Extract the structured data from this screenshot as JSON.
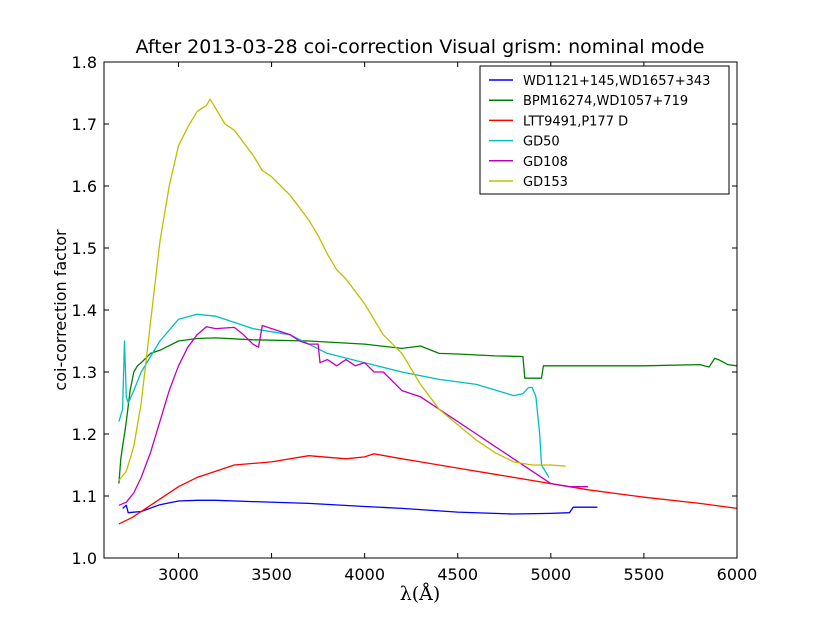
{
  "chart_data": {
    "type": "line",
    "title": "After 2013-03-28 coi-correction Visual grism: nominal mode",
    "xlabel": "λ(Å)",
    "ylabel": "coi-correction factor",
    "xlim": [
      2600,
      6000
    ],
    "ylim": [
      1.0,
      1.8
    ],
    "xticks": [
      "3000",
      "3500",
      "4000",
      "4500",
      "5000",
      "5500",
      "6000"
    ],
    "yticks": [
      "1.0",
      "1.1",
      "1.2",
      "1.3",
      "1.4",
      "1.5",
      "1.6",
      "1.7",
      "1.8"
    ],
    "grid": false,
    "legend_position": "top-right",
    "series": [
      {
        "name": "WD1121+145,WD1657+343",
        "color": "#0000ff",
        "x": [
          2700,
          2720,
          2730,
          2800,
          2900,
          3000,
          3100,
          3200,
          3400,
          3700,
          4000,
          4200,
          4500,
          4800,
          5000,
          5100,
          5120,
          5250
        ],
        "y": [
          1.08,
          1.085,
          1.073,
          1.075,
          1.086,
          1.092,
          1.093,
          1.093,
          1.091,
          1.088,
          1.083,
          1.08,
          1.074,
          1.071,
          1.072,
          1.073,
          1.082,
          1.082
        ]
      },
      {
        "name": "BPM16274,WD1057+719",
        "color": "#008000",
        "x": [
          2680,
          2690,
          2700,
          2710,
          2720,
          2740,
          2760,
          2780,
          2800,
          2850,
          2900,
          3000,
          3100,
          3200,
          3400,
          3700,
          4000,
          4200,
          4300,
          4400,
          4500,
          4700,
          4850,
          4860,
          4950,
          4960,
          5000,
          5500,
          5800,
          5850,
          5880,
          5900,
          5950,
          6000
        ],
        "y": [
          1.12,
          1.16,
          1.18,
          1.2,
          1.22,
          1.27,
          1.3,
          1.31,
          1.315,
          1.33,
          1.335,
          1.35,
          1.354,
          1.355,
          1.352,
          1.35,
          1.345,
          1.338,
          1.342,
          1.33,
          1.329,
          1.326,
          1.325,
          1.29,
          1.29,
          1.31,
          1.31,
          1.31,
          1.312,
          1.308,
          1.322,
          1.32,
          1.312,
          1.31
        ]
      },
      {
        "name": "LTT9491,P177 D",
        "color": "#ff0000",
        "x": [
          2680,
          2750,
          2800,
          2900,
          3000,
          3100,
          3200,
          3300,
          3500,
          3700,
          3900,
          4000,
          4050,
          4200,
          4300,
          4500,
          4700,
          4900,
          5200,
          5500,
          5800,
          6000
        ],
        "y": [
          1.055,
          1.065,
          1.075,
          1.095,
          1.115,
          1.13,
          1.14,
          1.15,
          1.155,
          1.165,
          1.16,
          1.163,
          1.168,
          1.16,
          1.155,
          1.145,
          1.135,
          1.125,
          1.11,
          1.098,
          1.088,
          1.08
        ]
      },
      {
        "name": "GD50",
        "color": "#00bfbf",
        "x": [
          2680,
          2700,
          2710,
          2720,
          2730,
          2760,
          2800,
          2900,
          3000,
          3100,
          3200,
          3300,
          3400,
          3600,
          3800,
          4000,
          4200,
          4400,
          4600,
          4800,
          4850,
          4880,
          4900,
          4920,
          4940,
          4950,
          4990
        ],
        "y": [
          1.22,
          1.24,
          1.35,
          1.26,
          1.25,
          1.27,
          1.3,
          1.35,
          1.385,
          1.393,
          1.39,
          1.38,
          1.37,
          1.36,
          1.33,
          1.315,
          1.3,
          1.288,
          1.28,
          1.262,
          1.265,
          1.275,
          1.275,
          1.26,
          1.2,
          1.15,
          1.13
        ]
      },
      {
        "name": "GD108",
        "color": "#bf00bf",
        "x": [
          2680,
          2720,
          2760,
          2800,
          2850,
          2900,
          2950,
          3000,
          3050,
          3100,
          3150,
          3200,
          3300,
          3350,
          3400,
          3430,
          3450,
          3500,
          3600,
          3650,
          3700,
          3750,
          3760,
          3800,
          3850,
          3900,
          3950,
          4000,
          4050,
          4100,
          4200,
          4300,
          4400,
          4500,
          4600,
          4700,
          4800,
          4900,
          5000,
          5100,
          5200
        ],
        "y": [
          1.085,
          1.09,
          1.105,
          1.13,
          1.17,
          1.22,
          1.27,
          1.31,
          1.34,
          1.36,
          1.373,
          1.37,
          1.372,
          1.36,
          1.345,
          1.34,
          1.375,
          1.37,
          1.36,
          1.35,
          1.345,
          1.345,
          1.315,
          1.32,
          1.31,
          1.32,
          1.31,
          1.315,
          1.3,
          1.3,
          1.27,
          1.26,
          1.24,
          1.22,
          1.2,
          1.18,
          1.16,
          1.14,
          1.12,
          1.115,
          1.115
        ]
      },
      {
        "name": "GD153",
        "color": "#bfbf00",
        "x": [
          2680,
          2720,
          2760,
          2800,
          2850,
          2900,
          2950,
          3000,
          3050,
          3100,
          3150,
          3170,
          3200,
          3250,
          3300,
          3350,
          3400,
          3450,
          3500,
          3550,
          3600,
          3650,
          3700,
          3750,
          3800,
          3850,
          3900,
          4000,
          4100,
          4200,
          4300,
          4400,
          4500,
          4600,
          4700,
          4800,
          4900,
          5000,
          5080
        ],
        "y": [
          1.125,
          1.14,
          1.18,
          1.25,
          1.38,
          1.51,
          1.6,
          1.665,
          1.695,
          1.72,
          1.73,
          1.74,
          1.725,
          1.7,
          1.69,
          1.67,
          1.65,
          1.625,
          1.615,
          1.6,
          1.585,
          1.565,
          1.545,
          1.52,
          1.49,
          1.465,
          1.45,
          1.41,
          1.36,
          1.33,
          1.28,
          1.24,
          1.215,
          1.19,
          1.17,
          1.155,
          1.15,
          1.15,
          1.148
        ]
      }
    ]
  }
}
